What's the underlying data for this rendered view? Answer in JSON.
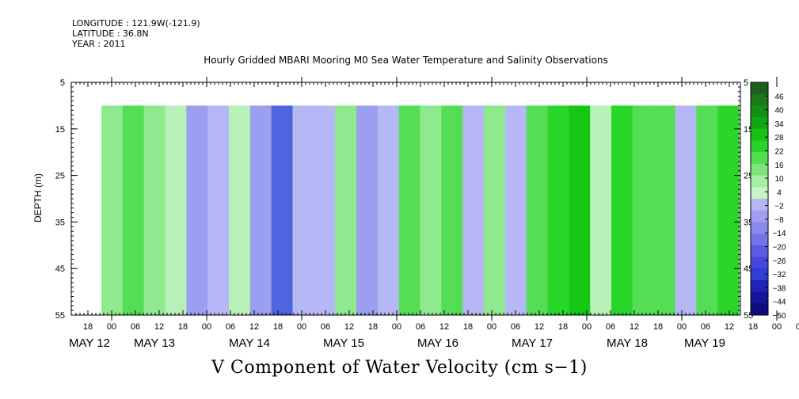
{
  "header": {
    "longitude": "LONGITUDE : 121.9W(-121.9)",
    "latitude": "LATITUDE : 36.8N",
    "year": "YEAR : 2011"
  },
  "chart_data": {
    "type": "heatmap",
    "title": "Hourly Gridded MBARI Mooring M0 Sea Water Temperature and Salinity Observations",
    "bottom_title": "V Component of Water Velocity (cm s−1)",
    "ylabel": "DEPTH (m)",
    "ylim": [
      5,
      55
    ],
    "y_inverted": true,
    "y_ticks": [
      "5",
      "15",
      "25",
      "35",
      "45",
      "55"
    ],
    "data_depth_range": [
      10,
      55
    ],
    "hour_ticks": [
      "18",
      "00",
      "06",
      "12",
      "18",
      "00",
      "06",
      "12",
      "18",
      "00",
      "06",
      "12",
      "18",
      "00",
      "06",
      "12",
      "18",
      "00",
      "06",
      "12",
      "18",
      "00",
      "06",
      "12",
      "18",
      "00",
      "06",
      "12",
      "18",
      "00",
      "06",
      "12"
    ],
    "day_labels": [
      "MAY 12",
      "MAY 13",
      "MAY 14",
      "MAY 15",
      "MAY 16",
      "MAY 17",
      "MAY 18",
      "MAY 19"
    ],
    "colorbar_labels": [
      "46",
      "40",
      "34",
      "28",
      "22",
      "16",
      "10",
      "4",
      "−2",
      "−8",
      "−14",
      "−20",
      "−26",
      "−32",
      "−38",
      "−44",
      "−50"
    ],
    "colorbar_range": [
      -50,
      52
    ],
    "colorbar_colors": [
      "#1e5e1e",
      "#1a7a1a",
      "#138f13",
      "#10a810",
      "#16c316",
      "#2bd22b",
      "#52de52",
      "#7be57b",
      "#a5eea5",
      "#c6f4c6",
      "#b6b6f5",
      "#a0a0f1",
      "#8a8aed",
      "#7474e8",
      "#5b5be2",
      "#4646da",
      "#2f3fd5",
      "#2222bb",
      "#15169c",
      "#0c0c7a"
    ],
    "v_velocity_by_time_col": [
      {
        "t": "May 12 06",
        "v": 8
      },
      {
        "t": "May 12 12",
        "v": 14
      },
      {
        "t": "May 12 18",
        "v": 4
      },
      {
        "t": "May 13 00",
        "v": -2
      },
      {
        "t": "May 13 06",
        "v": -10
      },
      {
        "t": "May 13 12",
        "v": -6
      },
      {
        "t": "May 13 18",
        "v": 2
      },
      {
        "t": "May 14 00",
        "v": -14
      },
      {
        "t": "May 14 06",
        "v": -22
      },
      {
        "t": "May 14 12",
        "v": -8
      },
      {
        "t": "May 14 18",
        "v": -6
      },
      {
        "t": "May 15 00",
        "v": 6
      },
      {
        "t": "May 15 06",
        "v": -10
      },
      {
        "t": "May 15 12",
        "v": -4
      },
      {
        "t": "May 15 18",
        "v": 10
      },
      {
        "t": "May 16 00",
        "v": 4
      },
      {
        "t": "May 16 06",
        "v": 12
      },
      {
        "t": "May 16 12",
        "v": -4
      },
      {
        "t": "May 16 18",
        "v": 6
      },
      {
        "t": "May 17 00",
        "v": -4
      },
      {
        "t": "May 17 06",
        "v": 12
      },
      {
        "t": "May 17 12",
        "v": 16
      },
      {
        "t": "May 17 18",
        "v": 24
      },
      {
        "t": "May 18 00",
        "v": 2
      },
      {
        "t": "May 18 06",
        "v": 20
      },
      {
        "t": "May 18 12",
        "v": 10
      },
      {
        "t": "May 18 18",
        "v": 14
      },
      {
        "t": "May 19 00",
        "v": -4
      },
      {
        "t": "May 19 06",
        "v": 10
      },
      {
        "t": "May 19 12",
        "v": 16
      }
    ]
  }
}
